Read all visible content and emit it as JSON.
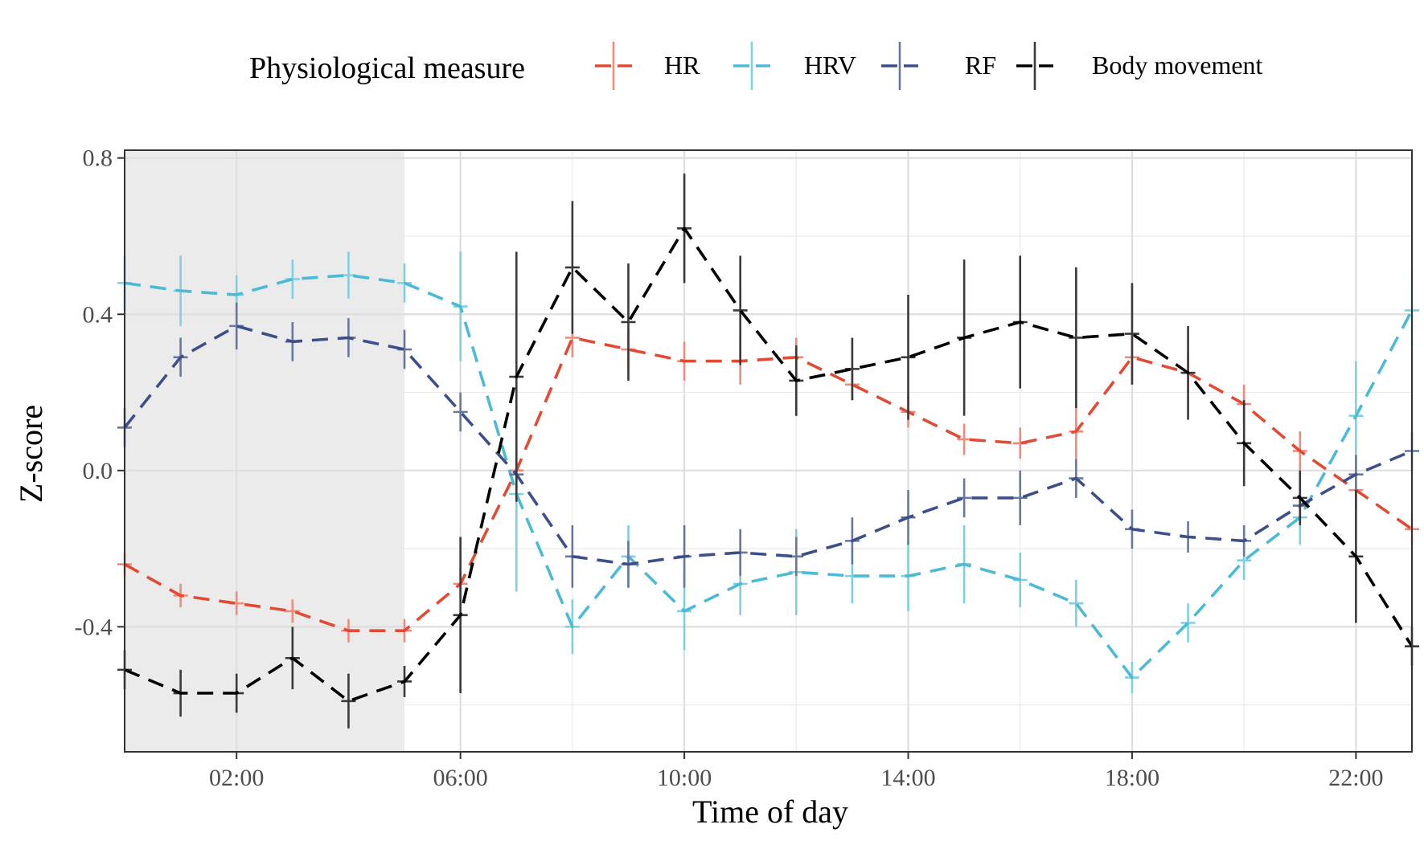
{
  "chart_data": {
    "type": "line",
    "xlabel": "Time of day",
    "ylabel": "Z-score",
    "legend_title": "Physiological measure",
    "legend_position": "top",
    "grid": true,
    "xlim": [
      0,
      23
    ],
    "ylim": [
      -0.72,
      0.82
    ],
    "x_ticks": [
      2,
      6,
      10,
      14,
      18,
      22
    ],
    "x_tick_labels": [
      "02:00",
      "06:00",
      "10:00",
      "14:00",
      "18:00",
      "22:00"
    ],
    "y_ticks": [
      -0.4,
      0.0,
      0.4,
      0.8
    ],
    "y_tick_labels": [
      "-0.4",
      "0.0",
      "0.4",
      "0.8"
    ],
    "shaded_region": {
      "x_start": 0,
      "x_end": 5,
      "color": "#ebebeb"
    },
    "x": [
      0,
      1,
      2,
      3,
      4,
      5,
      6,
      7,
      8,
      9,
      10,
      11,
      12,
      13,
      14,
      15,
      16,
      17,
      18,
      19,
      20,
      21,
      22,
      23
    ],
    "series": [
      {
        "name": "HR",
        "color": "#e34a33",
        "errorbar_color": "#ef8a7c",
        "values": [
          -0.24,
          -0.32,
          -0.34,
          -0.36,
          -0.41,
          -0.41,
          -0.29,
          0.0,
          0.34,
          0.31,
          0.28,
          0.28,
          0.29,
          0.22,
          0.15,
          0.08,
          0.07,
          0.1,
          0.29,
          0.25,
          0.17,
          0.05,
          -0.05,
          -0.15
        ],
        "errors": [
          0.03,
          0.03,
          0.03,
          0.03,
          0.03,
          0.03,
          0.04,
          0.05,
          0.05,
          0.05,
          0.05,
          0.06,
          0.05,
          0.04,
          0.04,
          0.04,
          0.04,
          0.07,
          0.06,
          0.05,
          0.05,
          0.05,
          0.05,
          0.04
        ]
      },
      {
        "name": "HRV",
        "color": "#4bbad6",
        "errorbar_color": "#7fcfe3",
        "values": [
          0.48,
          0.46,
          0.45,
          0.49,
          0.5,
          0.48,
          0.42,
          -0.06,
          -0.4,
          -0.22,
          -0.36,
          -0.29,
          -0.26,
          -0.27,
          -0.27,
          -0.24,
          -0.28,
          -0.34,
          -0.53,
          -0.39,
          -0.23,
          -0.12,
          0.14,
          0.41
        ],
        "errors": [
          0.07,
          0.09,
          0.05,
          0.05,
          0.06,
          0.05,
          0.14,
          0.25,
          0.07,
          0.08,
          0.1,
          0.08,
          0.11,
          0.07,
          0.09,
          0.1,
          0.07,
          0.06,
          0.04,
          0.05,
          0.05,
          0.07,
          0.14,
          0.09
        ]
      },
      {
        "name": "RF",
        "color": "#3c4f8a",
        "errorbar_color": "#67779f",
        "values": [
          0.11,
          0.29,
          0.37,
          0.33,
          0.34,
          0.31,
          0.15,
          -0.01,
          -0.22,
          -0.24,
          -0.22,
          -0.21,
          -0.22,
          -0.18,
          -0.12,
          -0.07,
          -0.07,
          -0.02,
          -0.15,
          -0.17,
          -0.18,
          -0.09,
          -0.01,
          0.05
        ],
        "errors": [
          0.05,
          0.05,
          0.06,
          0.05,
          0.05,
          0.05,
          0.05,
          0.04,
          0.08,
          0.06,
          0.08,
          0.06,
          0.05,
          0.06,
          0.07,
          0.05,
          0.07,
          0.05,
          0.05,
          0.04,
          0.04,
          0.04,
          0.05,
          0.05
        ]
      },
      {
        "name": "Body movement",
        "color": "#000000",
        "errorbar_color": "#3a3a3a",
        "values": [
          -0.51,
          -0.57,
          -0.57,
          -0.48,
          -0.59,
          -0.54,
          -0.37,
          0.24,
          0.52,
          0.38,
          0.62,
          0.41,
          0.23,
          0.26,
          0.29,
          0.34,
          0.38,
          0.34,
          0.35,
          0.25,
          0.07,
          -0.07,
          -0.22,
          -0.45
        ],
        "errors": [
          0.05,
          0.06,
          0.05,
          0.08,
          0.07,
          0.04,
          0.2,
          0.32,
          0.17,
          0.15,
          0.14,
          0.14,
          0.09,
          0.08,
          0.16,
          0.2,
          0.17,
          0.18,
          0.13,
          0.12,
          0.11,
          0.07,
          0.17,
          0.05
        ]
      }
    ]
  }
}
